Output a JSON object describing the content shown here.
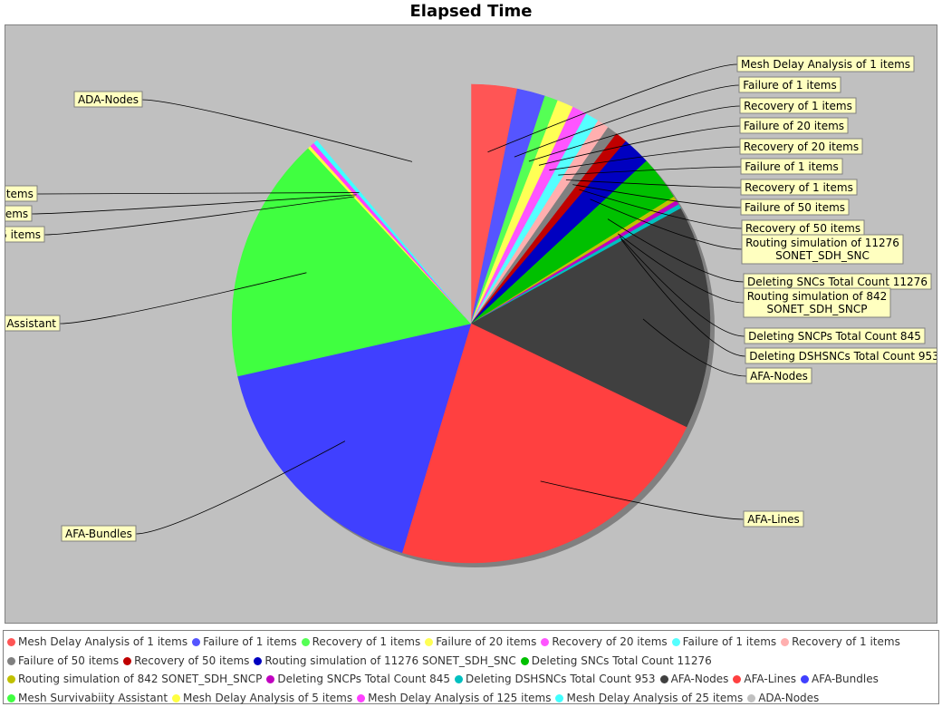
{
  "chart_data": {
    "type": "pie",
    "title": "Elapsed Time",
    "slices": [
      {
        "label": "Mesh Delay Analysis of 1 items",
        "value": 3.1,
        "color": "#ff5555"
      },
      {
        "label": "Failure of 1 items",
        "value": 1.9,
        "color": "#5555ff"
      },
      {
        "label": "Recovery of 1 items",
        "value": 0.9,
        "color": "#55ff55"
      },
      {
        "label": "Failure of 20 items",
        "value": 1.1,
        "color": "#ffff55"
      },
      {
        "label": "Recovery of 20 items",
        "value": 1.0,
        "color": "#ff55ff"
      },
      {
        "label": "Failure of 1 items",
        "value": 0.9,
        "color": "#55ffff"
      },
      {
        "label": "Recovery of 1 items",
        "value": 0.8,
        "color": "#ffafaf"
      },
      {
        "label": "Failure of 50 items",
        "value": 0.7,
        "color": "#808080"
      },
      {
        "label": "Recovery of 50 items",
        "value": 0.8,
        "color": "#c00000"
      },
      {
        "label": "Routing simulation of 11276 SONET_SDH_SNC",
        "value": 1.9,
        "color": "#0000c0"
      },
      {
        "label": "Deleting SNCs Total Count 11276",
        "value": 3.0,
        "color": "#00c000"
      },
      {
        "label": "Routing simulation of 842 SONET_SDH_SNCP",
        "value": 0.3,
        "color": "#c0c000"
      },
      {
        "label": "Deleting SNCPs Total Count 845",
        "value": 0.3,
        "color": "#c000c0"
      },
      {
        "label": "Deleting DSHSNCs Total Count 953",
        "value": 0.3,
        "color": "#00c0c0"
      },
      {
        "label": "AFA-Nodes",
        "value": 15.1,
        "color": "#404040"
      },
      {
        "label": "AFA-Lines",
        "value": 22.5,
        "color": "#ff4040"
      },
      {
        "label": "AFA-Bundles",
        "value": 16.8,
        "color": "#4040ff"
      },
      {
        "label": "Mesh Survivabiity Assistant",
        "value": 16.6,
        "color": "#40ff40"
      },
      {
        "label": "Mesh Delay Analysis of 5 items",
        "value": 0.2,
        "color": "#ffff40"
      },
      {
        "label": "Mesh Delay Analysis of 125 items",
        "value": 0.3,
        "color": "#ff40ff"
      },
      {
        "label": "Mesh Delay Analysis of 25 items",
        "value": 0.3,
        "color": "#40ffff"
      },
      {
        "label": "ADA-Nodes",
        "value": 11.1,
        "color": "#c0c0c0"
      }
    ]
  }
}
